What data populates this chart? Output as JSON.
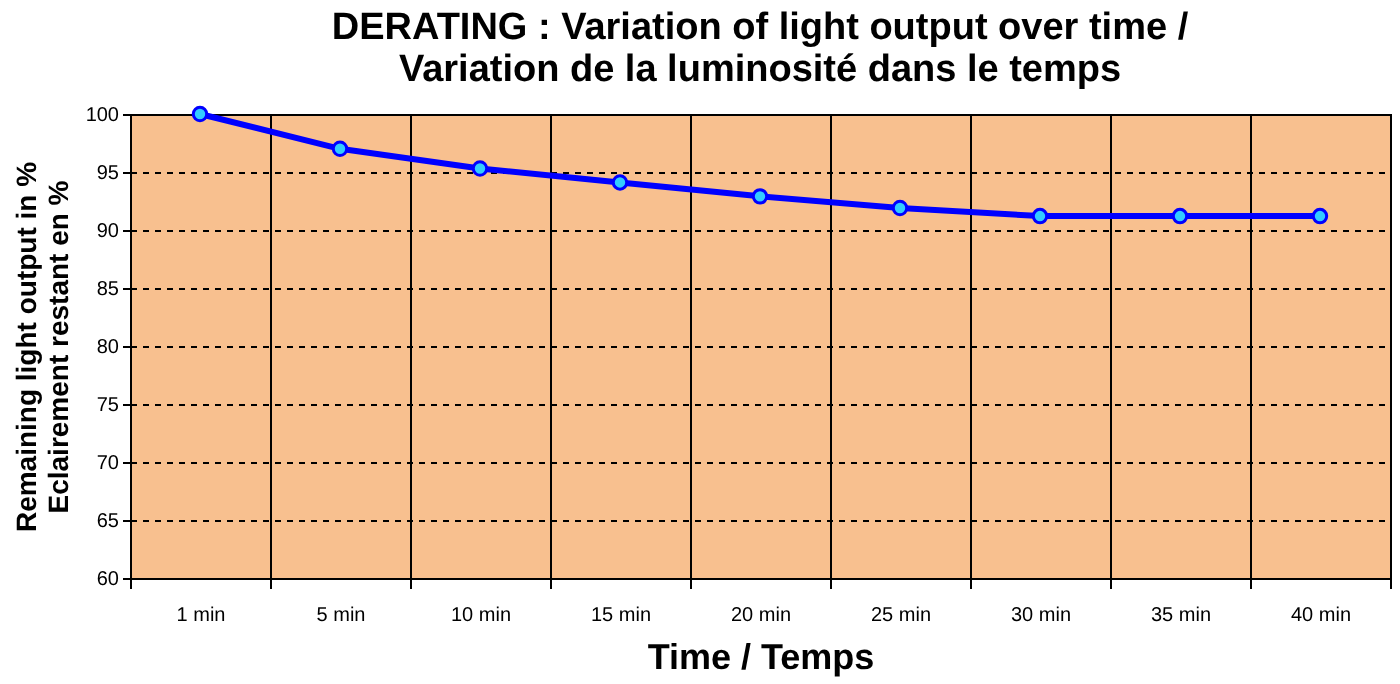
{
  "chart_data": {
    "type": "line",
    "title": "DERATING : Variation of light output over time /\nVariation de la luminosité dans le temps",
    "xlabel": "Time / Temps",
    "ylabel": "Remaining light output in %\nEclairement restant en %",
    "categories": [
      "1 min",
      "5 min",
      "10 min",
      "15 min",
      "20 min",
      "25 min",
      "30 min",
      "35 min",
      "40 min"
    ],
    "series": [
      {
        "color": "#0000ff",
        "values": [
          100,
          97,
          95.3,
          94.1,
          92.9,
          91.9,
          91.2,
          91.2,
          91.2
        ]
      }
    ],
    "ylim": [
      60,
      100
    ],
    "yticks": [
      60,
      65,
      70,
      75,
      80,
      85,
      90,
      95,
      100
    ],
    "grid": true,
    "marker": "circle",
    "line_style": "solid"
  }
}
